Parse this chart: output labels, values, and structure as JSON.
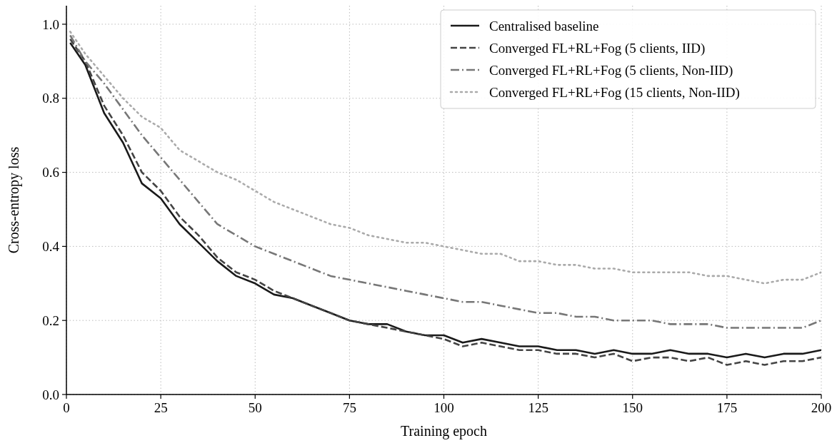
{
  "chart_data": {
    "type": "line",
    "xlabel": "Training epoch",
    "ylabel": "Cross-entropy loss",
    "x": [
      1,
      5,
      10,
      15,
      20,
      25,
      30,
      35,
      40,
      45,
      50,
      55,
      60,
      65,
      70,
      75,
      80,
      85,
      90,
      95,
      100,
      105,
      110,
      115,
      120,
      125,
      130,
      135,
      140,
      145,
      150,
      155,
      160,
      165,
      170,
      175,
      180,
      185,
      190,
      195,
      200
    ],
    "xlim": [
      0,
      200
    ],
    "xticks": [
      0,
      25,
      50,
      75,
      100,
      125,
      150,
      175,
      200
    ],
    "ylim": [
      0,
      1.05
    ],
    "yticks": [
      {
        "value": 0,
        "label": "0.0"
      },
      {
        "value": 0.2,
        "label": "0.2"
      },
      {
        "value": 0.4,
        "label": "0.4"
      },
      {
        "value": 0.6,
        "label": "0.6"
      },
      {
        "value": 0.8,
        "label": "0.8"
      },
      {
        "value": 1,
        "label": "1.0"
      }
    ],
    "grid": true,
    "legend": "top right",
    "marker": "none",
    "series": [
      {
        "name": "Centralised baseline",
        "color": "#1a1a1a",
        "line_style": "solid",
        "values": [
          0.95,
          0.89,
          0.76,
          0.68,
          0.57,
          0.53,
          0.46,
          0.41,
          0.36,
          0.32,
          0.3,
          0.27,
          0.26,
          0.24,
          0.22,
          0.2,
          0.19,
          0.19,
          0.17,
          0.16,
          0.16,
          0.14,
          0.15,
          0.14,
          0.13,
          0.13,
          0.12,
          0.12,
          0.11,
          0.12,
          0.11,
          0.11,
          0.12,
          0.11,
          0.11,
          0.1,
          0.11,
          0.1,
          0.11,
          0.11,
          0.12
        ]
      },
      {
        "name": "Converged FL+RL+Fog (5 clients, IID)",
        "color": "#444444",
        "line_style": "dashed",
        "values": [
          0.96,
          0.9,
          0.78,
          0.7,
          0.6,
          0.55,
          0.48,
          0.43,
          0.37,
          0.33,
          0.31,
          0.28,
          0.26,
          0.24,
          0.22,
          0.2,
          0.19,
          0.18,
          0.17,
          0.16,
          0.15,
          0.13,
          0.14,
          0.13,
          0.12,
          0.12,
          0.11,
          0.11,
          0.1,
          0.11,
          0.09,
          0.1,
          0.1,
          0.09,
          0.1,
          0.08,
          0.09,
          0.08,
          0.09,
          0.09,
          0.1
        ]
      },
      {
        "name": "Converged FL+RL+Fog (5 clients, Non-IID)",
        "color": "#777777",
        "line_style": "dashdot",
        "values": [
          0.97,
          0.9,
          0.84,
          0.77,
          0.7,
          0.64,
          0.58,
          0.52,
          0.46,
          0.43,
          0.4,
          0.38,
          0.36,
          0.34,
          0.32,
          0.31,
          0.3,
          0.29,
          0.28,
          0.27,
          0.26,
          0.25,
          0.25,
          0.24,
          0.23,
          0.22,
          0.22,
          0.21,
          0.21,
          0.2,
          0.2,
          0.2,
          0.19,
          0.19,
          0.19,
          0.18,
          0.18,
          0.18,
          0.18,
          0.18,
          0.2
        ]
      },
      {
        "name": "Converged FL+RL+Fog (15 clients, Non-IID)",
        "color": "#aaaaaa",
        "line_style": "dotted",
        "values": [
          0.98,
          0.92,
          0.86,
          0.8,
          0.75,
          0.72,
          0.66,
          0.63,
          0.6,
          0.58,
          0.55,
          0.52,
          0.5,
          0.48,
          0.46,
          0.45,
          0.43,
          0.42,
          0.41,
          0.41,
          0.4,
          0.39,
          0.38,
          0.38,
          0.36,
          0.36,
          0.35,
          0.35,
          0.34,
          0.34,
          0.33,
          0.33,
          0.33,
          0.33,
          0.32,
          0.32,
          0.31,
          0.3,
          0.31,
          0.31,
          0.33
        ]
      }
    ]
  }
}
